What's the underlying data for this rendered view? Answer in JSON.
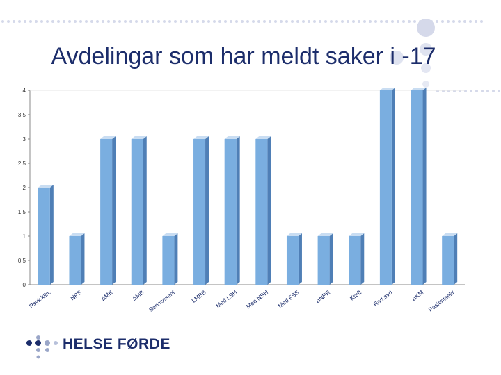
{
  "slide": {
    "title": "Avdelingar som har meldt saker i -17",
    "logo_text": "HELSE FØRDE"
  },
  "colors": {
    "title": "#1c2d6b",
    "bar_front": "#7aaee0",
    "bar_side": "#4f7fb6",
    "bar_top": "#c9ddf2",
    "axis": "#888888",
    "decor_dot": "#d5d9ea",
    "decor_circle": "#dfe3f0"
  },
  "chart_data": {
    "type": "bar",
    "title": "Avdelingar som har meldt saker i -17",
    "categories": [
      "Psyk.klin.",
      "NPS",
      "ΔMK",
      "ΔMB",
      "Servicesent",
      "LMBB",
      "Med LSH",
      "Med NSH",
      "Med FSS",
      "ΔNPR",
      "Kreft",
      "Rad.avd",
      "ΔKM",
      "Pasientsekr"
    ],
    "values": [
      2,
      1,
      3,
      3,
      1,
      3,
      3,
      3,
      1,
      1,
      1,
      4,
      4,
      1
    ],
    "ylim": [
      0,
      4
    ],
    "yticks": [
      0,
      0.5,
      1,
      1.5,
      2,
      2.5,
      3,
      3.5,
      4
    ],
    "ytick_labels": [
      "0",
      "0.5",
      "1",
      "1.5",
      "2",
      "2.5",
      "3",
      "3.5",
      "4"
    ],
    "xlabel": "",
    "ylabel": "",
    "grid": false,
    "legend": "none"
  }
}
